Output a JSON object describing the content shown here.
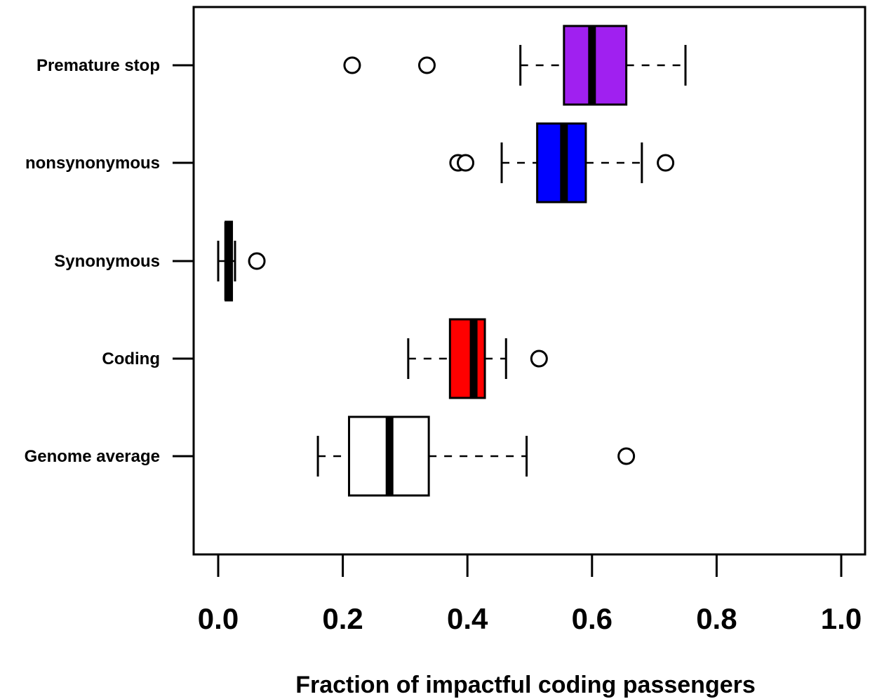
{
  "chart_data": {
    "type": "boxplot",
    "orientation": "horizontal",
    "xlabel": "Fraction of impactful coding passengers",
    "xlim": [
      -0.02,
      1.02
    ],
    "x_ticks": [
      0.0,
      0.2,
      0.4,
      0.6,
      0.8,
      1.0
    ],
    "x_tick_labels": [
      "0.0",
      "0.2",
      "0.4",
      "0.6",
      "0.8",
      "1.0"
    ],
    "grid": false,
    "categories": [
      "Premature stop",
      "nonsynonymous",
      "Synonymous",
      "Coding",
      "Genome average"
    ],
    "boxes": [
      {
        "name": "Premature stop",
        "color": "#a020f0",
        "whisker_low": 0.485,
        "q1": 0.555,
        "median": 0.6,
        "q3": 0.655,
        "whisker_high": 0.75,
        "outliers": [
          0.215,
          0.335
        ]
      },
      {
        "name": "nonsynonymous",
        "color": "#0000ff",
        "whisker_low": 0.455,
        "q1": 0.512,
        "median": 0.555,
        "q3": 0.59,
        "whisker_high": 0.68,
        "outliers": [
          0.385,
          0.397,
          0.718
        ]
      },
      {
        "name": "Synonymous",
        "color": "#2e8b57",
        "whisker_low": 0.0,
        "q1": 0.012,
        "median": 0.016,
        "q3": 0.022,
        "whisker_high": 0.027,
        "outliers": [
          0.062
        ]
      },
      {
        "name": "Coding",
        "color": "#ff0000",
        "whisker_low": 0.305,
        "q1": 0.372,
        "median": 0.41,
        "q3": 0.428,
        "whisker_high": 0.462,
        "outliers": [
          0.515
        ]
      },
      {
        "name": "Genome average",
        "color": "#ffffff",
        "whisker_low": 0.16,
        "q1": 0.21,
        "median": 0.275,
        "q3": 0.338,
        "whisker_high": 0.495,
        "outliers": [
          0.655
        ]
      }
    ]
  }
}
